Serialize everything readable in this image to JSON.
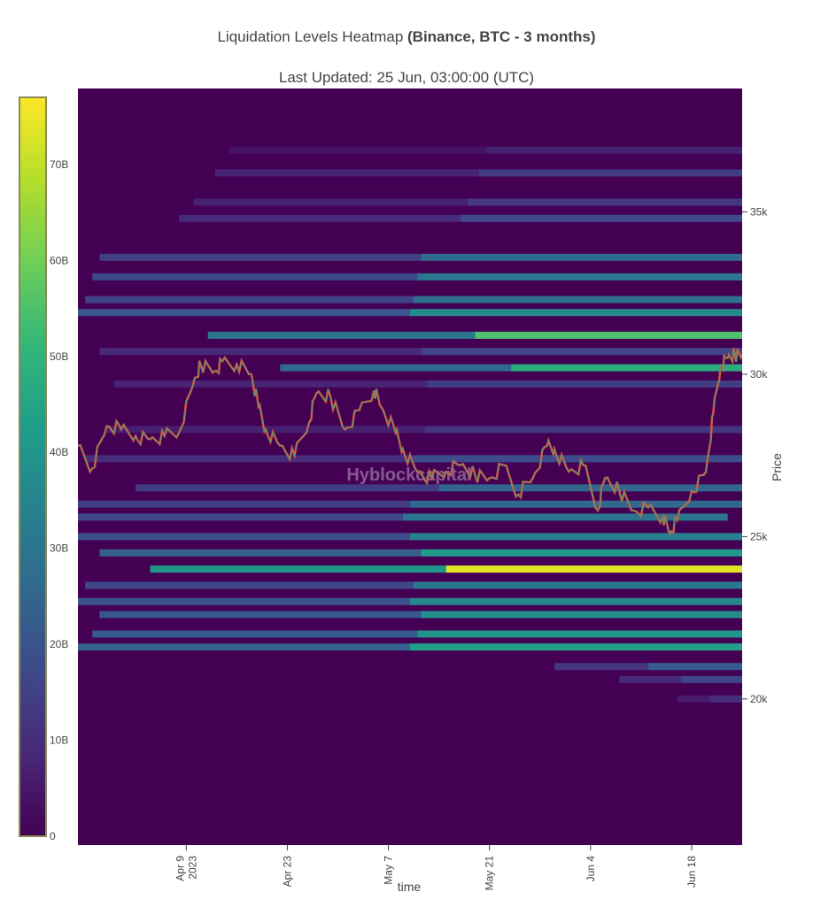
{
  "chart_data": {
    "type": "heatmap",
    "title": "Liquidation Levels Heatmap",
    "title_bold": "(Binance, BTC - 3 months)",
    "subtitle": "Last Updated: 25 Jun, 03:00:00 (UTC)",
    "xlabel": "time",
    "ylabel": "Price",
    "watermark": "Hyblockcapital",
    "colorscale": "viridis",
    "colorscale_stops": [
      "#440154",
      "#482878",
      "#3e4989",
      "#31688e",
      "#26828e",
      "#1f9e89",
      "#35b779",
      "#6ece58",
      "#b5de2b",
      "#fde725"
    ],
    "colorbar": {
      "range": [
        0,
        77
      ],
      "tick_values": [
        0,
        10,
        20,
        30,
        40,
        50,
        60,
        70
      ],
      "tick_labels": [
        "0",
        "10B",
        "20B",
        "30B",
        "40B",
        "50B",
        "60B",
        "70B"
      ]
    },
    "x_axis": {
      "start": "2023-03-25",
      "end": "2023-06-25",
      "tick_values": [
        "2023-04-09",
        "2023-04-23",
        "2023-05-07",
        "2023-05-21",
        "2023-06-04",
        "2023-06-18"
      ],
      "tick_labels": [
        "Apr 9\n2023",
        "Apr 23",
        "May 7",
        "May 21",
        "Jun 4",
        "Jun 18"
      ]
    },
    "y_axis": {
      "side": "right",
      "range": [
        15500,
        38800
      ],
      "tick_values": [
        20000,
        25000,
        30000,
        35000
      ],
      "tick_labels": [
        "20k",
        "25k",
        "30k",
        "35k"
      ]
    },
    "liquidation_bands": [
      {
        "price": 36900,
        "start": "2023-04-15",
        "end": "2023-06-25",
        "value": 7
      },
      {
        "price": 36200,
        "start": "2023-04-13",
        "end": "2023-06-25",
        "value": 14
      },
      {
        "price": 35300,
        "start": "2023-04-10",
        "end": "2023-06-25",
        "value": 13
      },
      {
        "price": 34800,
        "start": "2023-04-08",
        "end": "2023-06-25",
        "value": 17
      },
      {
        "price": 33600,
        "start": "2023-03-28",
        "end": "2023-06-25",
        "value": 27
      },
      {
        "price": 33000,
        "start": "2023-03-27",
        "end": "2023-06-25",
        "value": 31
      },
      {
        "price": 32300,
        "start": "2023-03-26",
        "end": "2023-06-25",
        "value": 28
      },
      {
        "price": 31900,
        "start": "2023-03-25",
        "end": "2023-06-25",
        "value": 37
      },
      {
        "price": 31200,
        "start": "2023-04-12",
        "end": "2023-06-25",
        "value": 55
      },
      {
        "price": 30700,
        "start": "2023-03-28",
        "end": "2023-06-25",
        "value": 16
      },
      {
        "price": 30200,
        "start": "2023-04-22",
        "end": "2023-06-25",
        "value": 48
      },
      {
        "price": 29700,
        "start": "2023-03-30",
        "end": "2023-06-25",
        "value": 14
      },
      {
        "price": 28300,
        "start": "2023-03-29",
        "end": "2023-06-25",
        "value": 12
      },
      {
        "price": 27400,
        "start": "2023-03-26",
        "end": "2023-06-25",
        "value": 18
      },
      {
        "price": 26500,
        "start": "2023-04-02",
        "end": "2023-06-25",
        "value": 25
      },
      {
        "price": 26000,
        "start": "2023-03-25",
        "end": "2023-06-25",
        "value": 26
      },
      {
        "price": 25600,
        "start": "2023-03-25",
        "end": "2023-06-23",
        "value": 30
      },
      {
        "price": 25000,
        "start": "2023-03-25",
        "end": "2023-06-25",
        "value": 34
      },
      {
        "price": 24500,
        "start": "2023-03-28",
        "end": "2023-06-25",
        "value": 42
      },
      {
        "price": 24000,
        "start": "2023-04-04",
        "end": "2023-06-25",
        "value": 74
      },
      {
        "price": 23500,
        "start": "2023-03-26",
        "end": "2023-06-25",
        "value": 31
      },
      {
        "price": 23000,
        "start": "2023-03-25",
        "end": "2023-06-25",
        "value": 36
      },
      {
        "price": 22600,
        "start": "2023-03-28",
        "end": "2023-06-25",
        "value": 38
      },
      {
        "price": 22000,
        "start": "2023-03-27",
        "end": "2023-06-25",
        "value": 40
      },
      {
        "price": 21600,
        "start": "2023-03-25",
        "end": "2023-06-25",
        "value": 43
      },
      {
        "price": 21000,
        "start": "2023-05-30",
        "end": "2023-06-25",
        "value": 22
      },
      {
        "price": 20600,
        "start": "2023-06-08",
        "end": "2023-06-25",
        "value": 16
      },
      {
        "price": 20000,
        "start": "2023-06-16",
        "end": "2023-06-25",
        "value": 10
      }
    ],
    "price_series": {
      "name": "BTC",
      "x": [
        "2023-03-25",
        "2023-03-27",
        "2023-03-29",
        "2023-03-31",
        "2023-04-02",
        "2023-04-04",
        "2023-04-06",
        "2023-04-08",
        "2023-04-10",
        "2023-04-11",
        "2023-04-13",
        "2023-04-14",
        "2023-04-16",
        "2023-04-18",
        "2023-04-19",
        "2023-04-20",
        "2023-04-22",
        "2023-04-24",
        "2023-04-26",
        "2023-04-27",
        "2023-04-29",
        "2023-05-01",
        "2023-05-03",
        "2023-05-05",
        "2023-05-06",
        "2023-05-08",
        "2023-05-09",
        "2023-05-11",
        "2023-05-13",
        "2023-05-15",
        "2023-05-17",
        "2023-05-19",
        "2023-05-21",
        "2023-05-23",
        "2023-05-25",
        "2023-05-27",
        "2023-05-29",
        "2023-05-30",
        "2023-06-01",
        "2023-06-03",
        "2023-06-05",
        "2023-06-06",
        "2023-06-08",
        "2023-06-10",
        "2023-06-12",
        "2023-06-14",
        "2023-06-15",
        "2023-06-16",
        "2023-06-18",
        "2023-06-20",
        "2023-06-21",
        "2023-06-22",
        "2023-06-23",
        "2023-06-24",
        "2023-06-25"
      ],
      "y": [
        27800,
        27100,
        28400,
        28300,
        28100,
        28000,
        28100,
        28200,
        29700,
        30300,
        30100,
        30400,
        30300,
        30000,
        29000,
        28300,
        27800,
        27500,
        28500,
        29400,
        29300,
        28300,
        28900,
        29500,
        29000,
        28200,
        27700,
        27000,
        26800,
        27000,
        27200,
        26900,
        26800,
        27200,
        26300,
        26800,
        27800,
        27700,
        27000,
        27200,
        25800,
        26800,
        26400,
        25800,
        25900,
        25600,
        25100,
        25500,
        26400,
        27000,
        28800,
        30200,
        30500,
        30600,
        30600
      ]
    }
  }
}
